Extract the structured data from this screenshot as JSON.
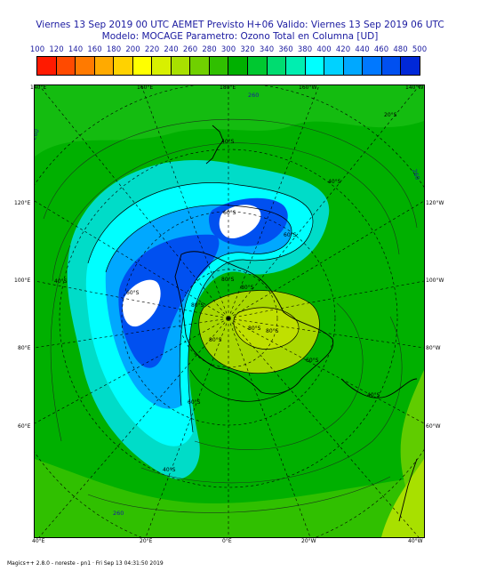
{
  "header": {
    "line1": "Viernes 13 Sep 2019 00 UTC AEMET Previsto H+06 Valido: Viernes 13 Sep 2019 06 UTC",
    "line2": "Modelo: MOCAGE Parametro: Ozono Total en Columna [UD]"
  },
  "scale": {
    "labels": [
      "100",
      "120",
      "140",
      "160",
      "180",
      "200",
      "220",
      "240",
      "260",
      "280",
      "300",
      "320",
      "340",
      "360",
      "380",
      "400",
      "420",
      "440",
      "460",
      "480",
      "500"
    ],
    "colors": [
      "#ff1a00",
      "#ff4a00",
      "#ff7a00",
      "#ffaa00",
      "#ffd200",
      "#ffff00",
      "#d8f000",
      "#a8e000",
      "#70d000",
      "#30c000",
      "#00b000",
      "#00c830",
      "#00dc70",
      "#00eeb0",
      "#00ffff",
      "#00d2ff",
      "#00a8ff",
      "#0078ff",
      "#0050f0",
      "#0028d8"
    ]
  },
  "axes": {
    "top": [
      "140°E",
      "160°E",
      "180°E",
      "160°W",
      "140°W"
    ],
    "bottom": [
      "40°E",
      "20°E",
      "0°E",
      "20°W",
      "40°W"
    ],
    "left": [
      "120°E",
      "100°E",
      "80°E",
      "60°E"
    ],
    "right": [
      "120°W",
      "100°W",
      "80°W",
      "60°W"
    ]
  },
  "latitude_labels": [
    "20°S",
    "40°S",
    "40°S",
    "60°S",
    "60°S",
    "60°S",
    "80°S",
    "80°S",
    "80°S",
    "80°S",
    "80°S",
    "80°S",
    "60°S",
    "60°S",
    "40°S",
    "40°S",
    "40°S"
  ],
  "contour_labels": [
    "260",
    "260",
    "260",
    "260"
  ],
  "footer": "Magics++ 2.8.0 - noreste - pn1 · Fri Sep 13 04:31:50 2019"
}
